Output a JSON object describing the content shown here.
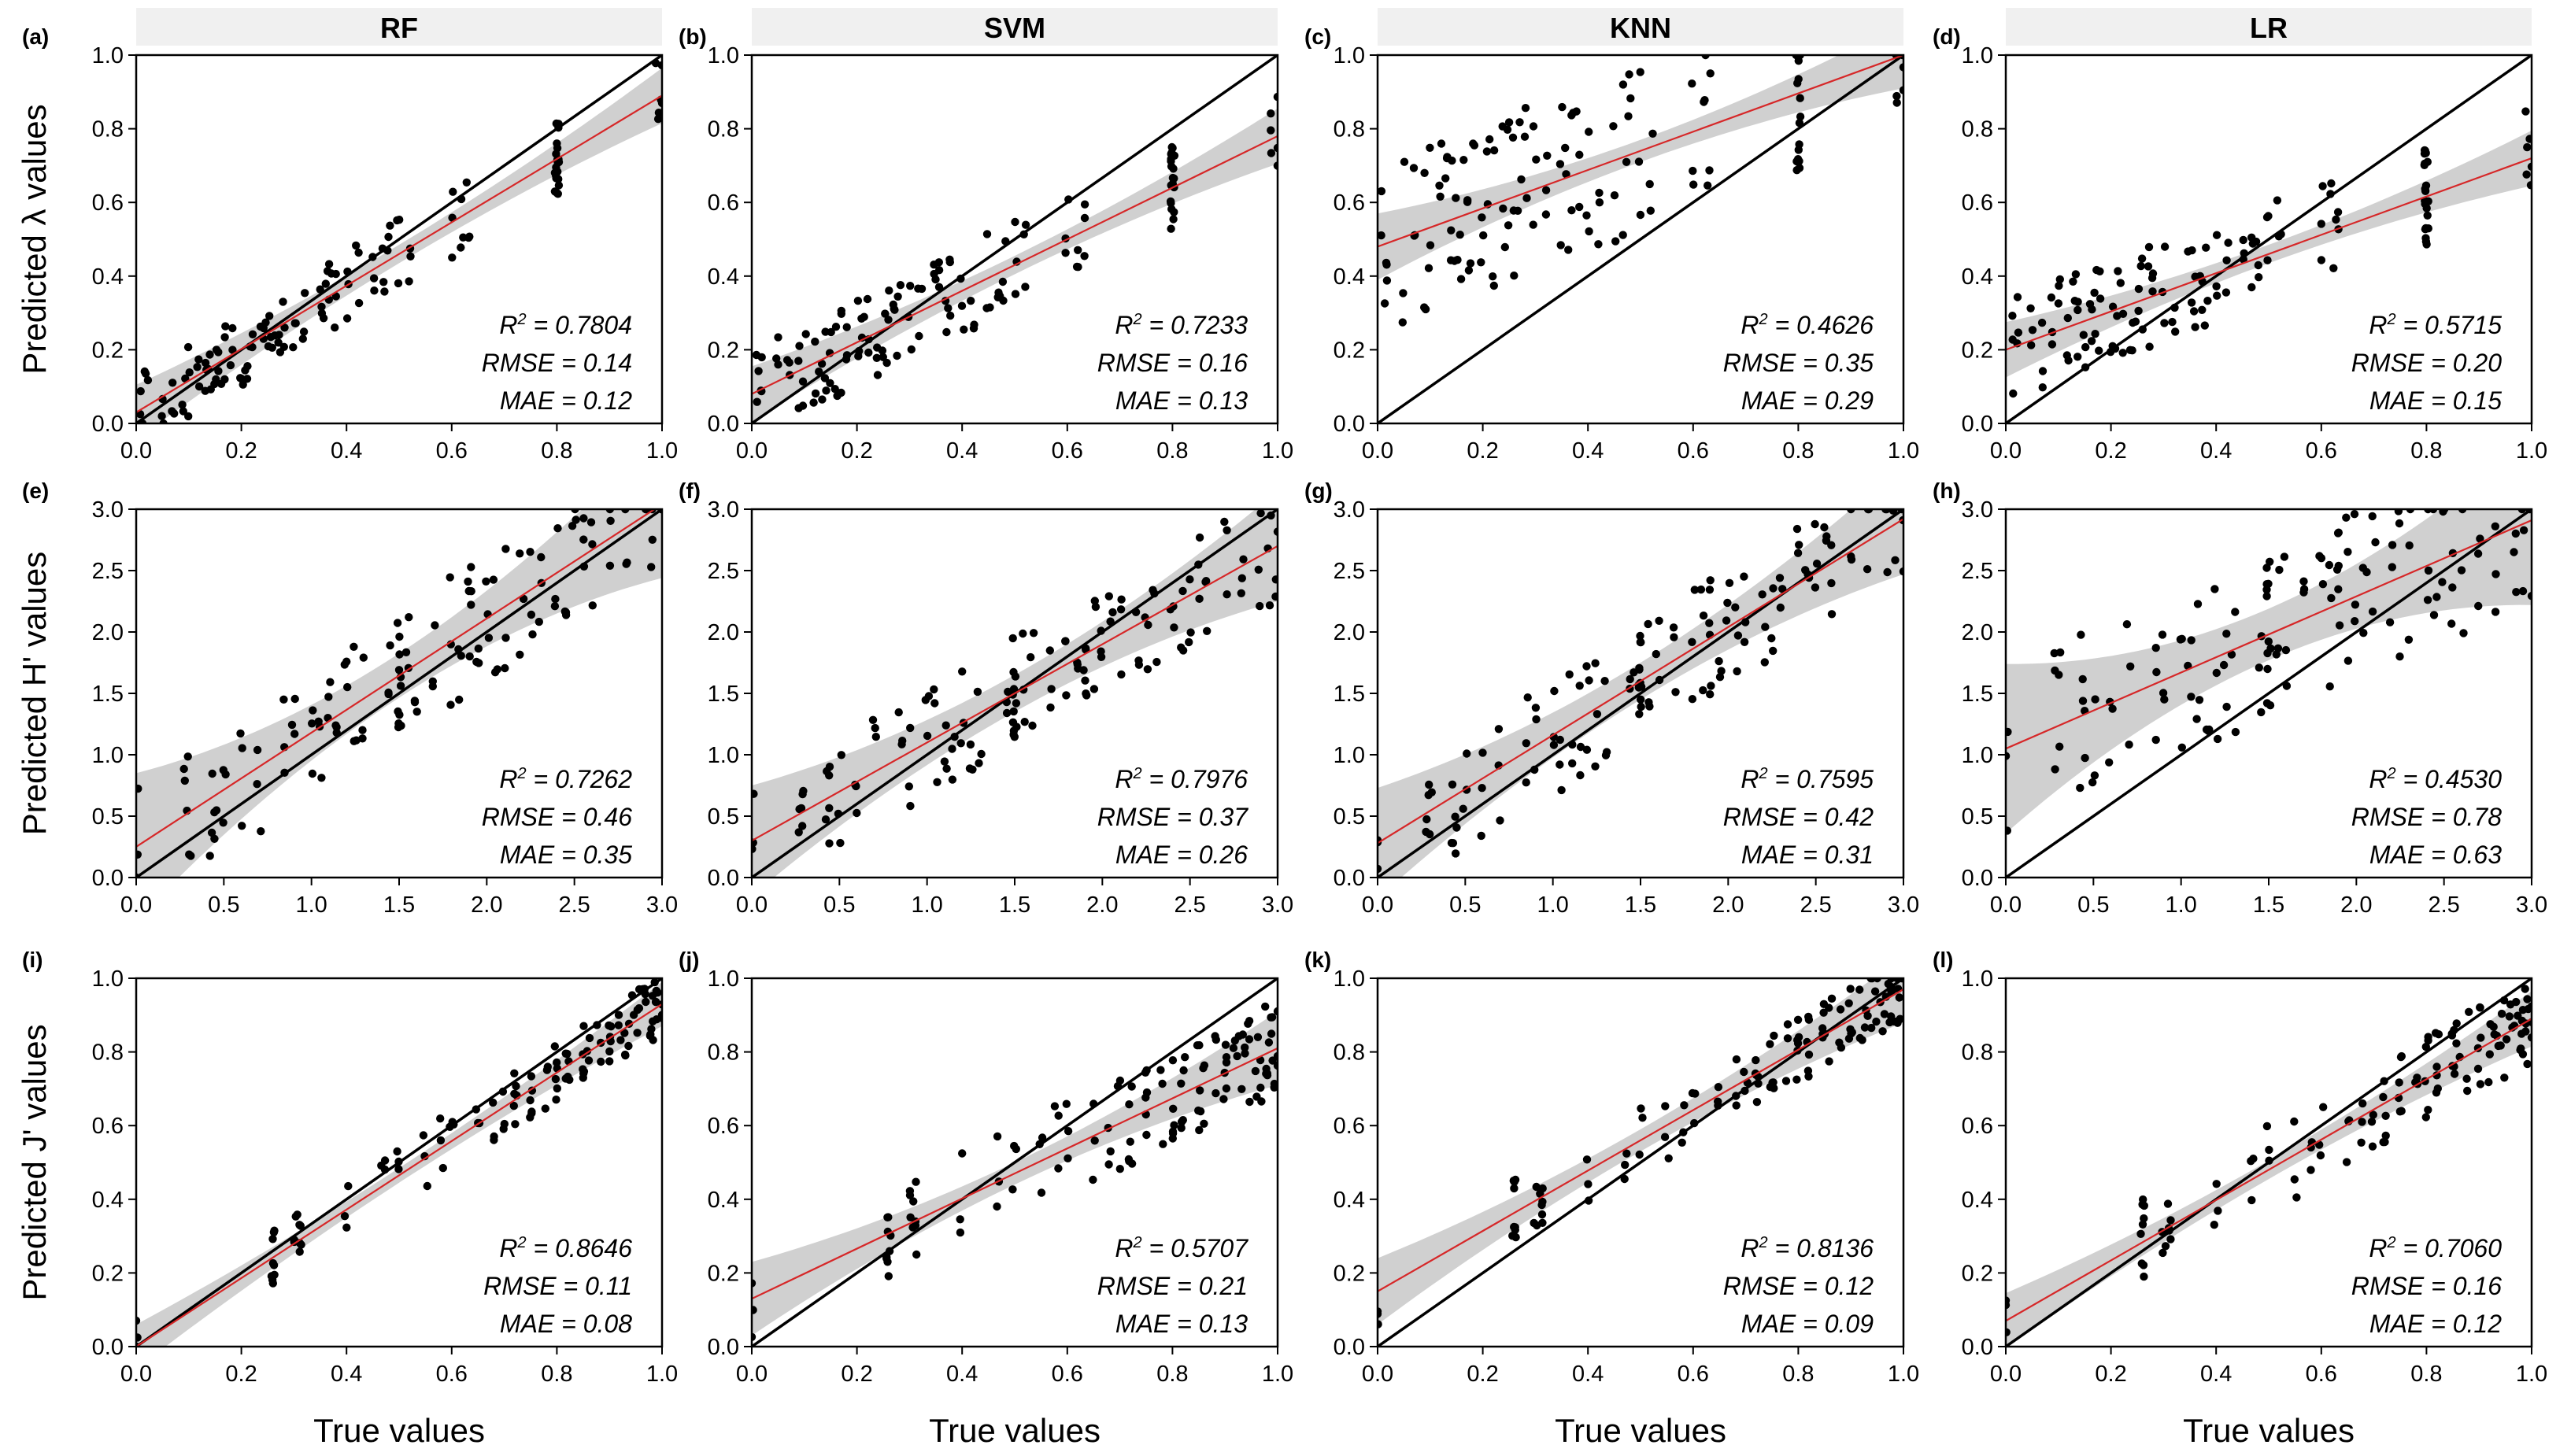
{
  "chart_data": {
    "type": "scatter",
    "figure_layout": "3x4 grid of predicted vs true scatter plots with 1:1 line (black), linear fit (red) and confidence band (grey)",
    "column_titles": [
      "RF",
      "SVM",
      "KNN",
      "LR"
    ],
    "row_ylabels": [
      "Predicted λ values",
      "Predicted H' values",
      "Predicted J' values"
    ],
    "xlabel": "True values",
    "colors": {
      "points": "#000000",
      "identity_line": "#000000",
      "fit_line": "#d62728",
      "confidence_band": "#c8c8c8",
      "title_strip": "#f0f0f0"
    },
    "rows": [
      {
        "metric": "λ",
        "xlim": [
          0,
          1
        ],
        "ylim": [
          0,
          1
        ],
        "xticks": [
          "0.0",
          "0.2",
          "0.4",
          "0.6",
          "0.8",
          "1.0"
        ],
        "yticks": [
          "0.0",
          "0.2",
          "0.4",
          "0.6",
          "0.8",
          "1.0"
        ]
      },
      {
        "metric": "H'",
        "xlim": [
          0,
          3
        ],
        "ylim": [
          0,
          3
        ],
        "xticks": [
          "0.0",
          "0.5",
          "1.0",
          "1.5",
          "2.0",
          "2.5",
          "3.0"
        ],
        "yticks": [
          "0.0",
          "0.5",
          "1.0",
          "1.5",
          "2.0",
          "2.5",
          "3.0"
        ]
      },
      {
        "metric": "J'",
        "xlim": [
          0,
          1
        ],
        "ylim": [
          0,
          1
        ],
        "xticks": [
          "0.0",
          "0.2",
          "0.4",
          "0.6",
          "0.8",
          "1.0"
        ],
        "yticks": [
          "0.0",
          "0.2",
          "0.4",
          "0.6",
          "0.8",
          "1.0"
        ]
      }
    ],
    "panels": [
      {
        "label": "(a)",
        "row": 0,
        "col": 0,
        "model": "RF",
        "r2": "0.7804",
        "rmse": "0.14",
        "mae": "0.12",
        "fit": [
          0.03,
          0.86
        ],
        "band": [
          0.025,
          0.05
        ],
        "pattern": "normal",
        "spread": 0.1
      },
      {
        "label": "(b)",
        "row": 0,
        "col": 1,
        "model": "SVM",
        "r2": "0.7233",
        "rmse": "0.16",
        "mae": "0.13",
        "fit": [
          0.08,
          0.7
        ],
        "band": [
          0.025,
          0.05
        ],
        "pattern": "normal",
        "spread": 0.12
      },
      {
        "label": "(c)",
        "row": 0,
        "col": 2,
        "model": "KNN",
        "r2": "0.4626",
        "rmse": "0.35",
        "mae": "0.29",
        "fit": [
          0.48,
          0.52
        ],
        "band": [
          0.03,
          0.06
        ],
        "pattern": "over",
        "spread": 0.18
      },
      {
        "label": "(d)",
        "row": 0,
        "col": 3,
        "model": "LR",
        "r2": "0.5715",
        "rmse": "0.20",
        "mae": "0.15",
        "fit": [
          0.2,
          0.52
        ],
        "band": [
          0.025,
          0.05
        ],
        "pattern": "normal",
        "spread": 0.14
      },
      {
        "label": "(e)",
        "row": 1,
        "col": 0,
        "model": "RF",
        "r2": "0.7262",
        "rmse": "0.46",
        "mae": "0.35",
        "fit": [
          0.25,
          0.93
        ],
        "band": [
          0.06,
          0.14
        ],
        "pattern": "normal",
        "spread": 0.35
      },
      {
        "label": "(f)",
        "row": 1,
        "col": 1,
        "model": "SVM",
        "r2": "0.7976",
        "rmse": "0.37",
        "mae": "0.26",
        "fit": [
          0.3,
          0.8
        ],
        "band": [
          0.05,
          0.1
        ],
        "pattern": "normal",
        "spread": 0.3
      },
      {
        "label": "(g)",
        "row": 1,
        "col": 2,
        "model": "KNN",
        "r2": "0.7595",
        "rmse": "0.42",
        "mae": "0.31",
        "fit": [
          0.28,
          0.88
        ],
        "band": [
          0.05,
          0.1
        ],
        "pattern": "normal",
        "spread": 0.33
      },
      {
        "label": "(h)",
        "row": 1,
        "col": 3,
        "model": "LR",
        "r2": "0.4530",
        "rmse": "0.78",
        "mae": "0.63",
        "fit": [
          1.05,
          0.62
        ],
        "band": [
          0.07,
          0.16
        ],
        "pattern": "hshift",
        "spread": 0.45
      },
      {
        "label": "(i)",
        "row": 2,
        "col": 0,
        "model": "RF",
        "r2": "0.8646",
        "rmse": "0.11",
        "mae": "0.08",
        "fit": [
          0.0,
          0.93
        ],
        "band": [
          0.02,
          0.04
        ],
        "pattern": "normal",
        "spread": 0.08
      },
      {
        "label": "(j)",
        "row": 2,
        "col": 1,
        "model": "SVM",
        "r2": "0.5707",
        "rmse": "0.21",
        "mae": "0.13",
        "fit": [
          0.13,
          0.68
        ],
        "band": [
          0.03,
          0.07
        ],
        "pattern": "normal",
        "spread": 0.13
      },
      {
        "label": "(k)",
        "row": 2,
        "col": 2,
        "model": "KNN",
        "r2": "0.8136",
        "rmse": "0.12",
        "mae": "0.09",
        "fit": [
          0.15,
          0.82
        ],
        "band": [
          0.03,
          0.06
        ],
        "pattern": "upper",
        "spread": 0.09
      },
      {
        "label": "(l)",
        "row": 2,
        "col": 3,
        "model": "LR",
        "r2": "0.7060",
        "rmse": "0.16",
        "mae": "0.12",
        "fit": [
          0.07,
          0.82
        ],
        "band": [
          0.025,
          0.05
        ],
        "pattern": "normal",
        "spread": 0.12
      }
    ],
    "true_values_lambda": [
      0.01,
      0.02,
      0.05,
      0.07,
      0.09,
      0.1,
      0.12,
      0.13,
      0.14,
      0.15,
      0.16,
      0.17,
      0.18,
      0.2,
      0.21,
      0.22,
      0.24,
      0.25,
      0.26,
      0.27,
      0.28,
      0.3,
      0.32,
      0.35,
      0.36,
      0.37,
      0.38,
      0.4,
      0.42,
      0.45,
      0.47,
      0.48,
      0.5,
      0.52,
      0.6,
      0.62,
      0.63,
      0.8,
      0.8,
      0.8,
      0.8,
      0.8,
      0.8,
      0.8,
      0.99,
      1.0
    ],
    "true_values_H": [
      0.0,
      0.28,
      0.3,
      0.43,
      0.45,
      0.5,
      0.6,
      0.7,
      0.85,
      0.9,
      1.0,
      1.05,
      1.1,
      1.15,
      1.2,
      1.25,
      1.3,
      1.45,
      1.5,
      1.5,
      1.5,
      1.5,
      1.55,
      1.6,
      1.7,
      1.8,
      1.85,
      1.9,
      1.9,
      1.95,
      2.0,
      2.05,
      2.1,
      2.2,
      2.25,
      2.3,
      2.4,
      2.45,
      2.5,
      2.55,
      2.6,
      2.7,
      2.8,
      2.9,
      2.95,
      3.0
    ],
    "true_values_J": [
      0.0,
      0.26,
      0.26,
      0.26,
      0.3,
      0.31,
      0.31,
      0.4,
      0.47,
      0.5,
      0.55,
      0.58,
      0.6,
      0.65,
      0.68,
      0.7,
      0.72,
      0.72,
      0.75,
      0.75,
      0.78,
      0.8,
      0.8,
      0.82,
      0.82,
      0.85,
      0.85,
      0.86,
      0.88,
      0.9,
      0.9,
      0.92,
      0.93,
      0.94,
      0.95,
      0.96,
      0.97,
      0.98,
      0.98,
      0.99,
      0.99,
      1.0
    ]
  }
}
